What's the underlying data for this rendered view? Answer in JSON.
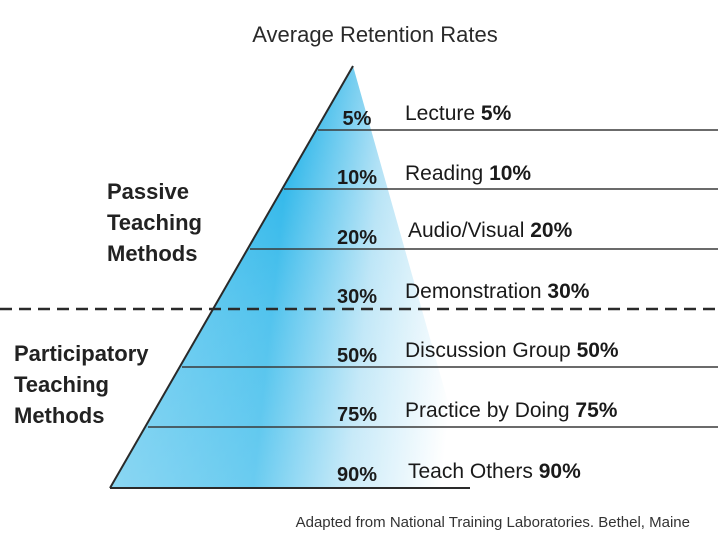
{
  "title": "Average Retention Rates",
  "groups": {
    "passive": [
      "Passive",
      "Teaching",
      "Methods"
    ],
    "participatory": [
      "Participatory",
      "Teaching",
      "Methods"
    ]
  },
  "levels": [
    {
      "label": "Lecture",
      "rate": "5%"
    },
    {
      "label": "Reading",
      "rate": "10%"
    },
    {
      "label": "Audio/Visual",
      "rate": "20%"
    },
    {
      "label": "Demonstration",
      "rate": "30%"
    },
    {
      "label": "Discussion Group",
      "rate": "50%"
    },
    {
      "label": "Practice by Doing",
      "rate": "75%"
    },
    {
      "label": "Teach Others",
      "rate": "90%"
    }
  ],
  "source": "Adapted from National Training Laboratories. Bethel, Maine",
  "colors": {
    "pyramid_dark": "#1ab0e8",
    "pyramid_light": "#d8eff9",
    "lines": "#3a3a3a"
  }
}
